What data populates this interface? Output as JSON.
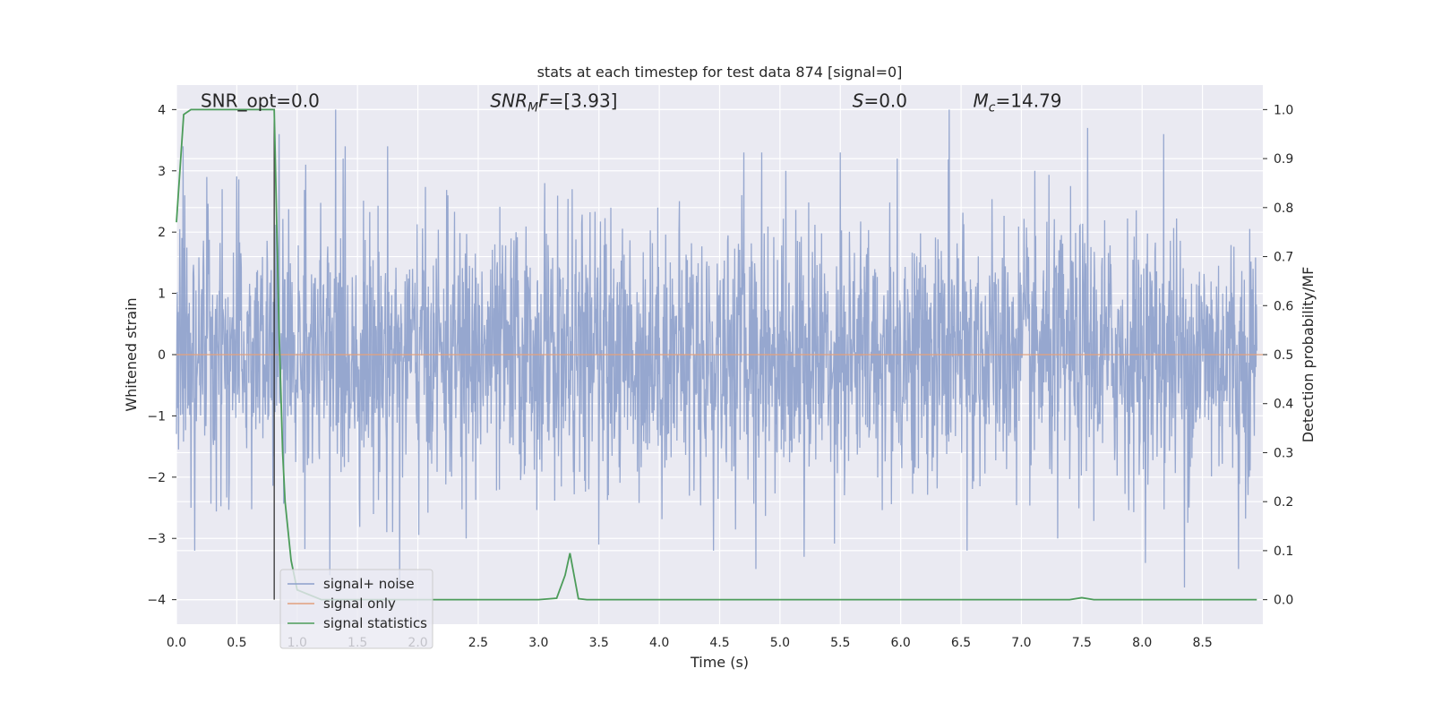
{
  "chart_data": {
    "type": "line",
    "title": "stats at each timestep for test data 874 [signal=0]",
    "xlabel": "Time (s)",
    "ylabel": "Whitened strain",
    "y2label": "Detection probability/MF",
    "xlim": [
      0.0,
      9.0
    ],
    "ylim": [
      -4.4,
      4.4
    ],
    "y2lim": [
      -0.05,
      1.05
    ],
    "grid": true,
    "xticks": [
      "0.0",
      "0.5",
      "1.0",
      "1.5",
      "2.0",
      "2.5",
      "3.0",
      "3.5",
      "4.0",
      "4.5",
      "5.0",
      "5.5",
      "6.0",
      "6.5",
      "7.0",
      "7.5",
      "8.0",
      "8.5"
    ],
    "yticks": [
      "4",
      "3",
      "2",
      "1",
      "0",
      "−1",
      "−2",
      "−3",
      "−4"
    ],
    "y2ticks": [
      "1.0",
      "0.9",
      "0.8",
      "0.7",
      "0.6",
      "0.5",
      "0.4",
      "0.3",
      "0.2",
      "0.1",
      "0.0"
    ],
    "annotations": [
      {
        "label": "SNR_opt=0.0",
        "x": 0.2,
        "y": 4.1
      },
      {
        "label": "SNR_MF=[3.93]",
        "x": 2.6,
        "y": 4.1
      },
      {
        "label": "S=0.0",
        "x": 5.6,
        "y": 4.1
      },
      {
        "label": "M_c=14.79",
        "x": 6.6,
        "y": 4.1
      }
    ],
    "vline_x": 0.81,
    "legend": {
      "placement": "lower-left",
      "entries": [
        {
          "label": "signal+ noise",
          "color": "#8da0cb"
        },
        {
          "label": "signal only",
          "color": "#e1a07c"
        },
        {
          "label": "signal statistics",
          "color": "#4c9c5a"
        }
      ]
    },
    "series": [
      {
        "name": "signal+ noise",
        "color": "#8da0cb",
        "note_sampling": "whitened noise sampled over 0-9 s",
        "peaks": [
          {
            "x": 0.07,
            "y": 2.6
          },
          {
            "x": 0.25,
            "y": 2.9
          },
          {
            "x": 0.38,
            "y": 2.7
          },
          {
            "x": 0.85,
            "y": 3.6
          },
          {
            "x": 1.07,
            "y": 3.1
          },
          {
            "x": 1.32,
            "y": 4.0
          },
          {
            "x": 1.38,
            "y": 3.2
          },
          {
            "x": 1.75,
            "y": 3.4
          },
          {
            "x": 2.25,
            "y": 2.6
          },
          {
            "x": 3.05,
            "y": 2.8
          },
          {
            "x": 3.6,
            "y": 2.4
          },
          {
            "x": 4.7,
            "y": 3.3
          },
          {
            "x": 4.85,
            "y": 3.3
          },
          {
            "x": 5.05,
            "y": 3.0
          },
          {
            "x": 5.5,
            "y": 3.3
          },
          {
            "x": 5.97,
            "y": 3.2
          },
          {
            "x": 6.4,
            "y": 4.0
          },
          {
            "x": 6.55,
            "y": 3.9
          },
          {
            "x": 7.55,
            "y": 3.7
          },
          {
            "x": 8.18,
            "y": 3.6
          }
        ],
        "troughs": [
          {
            "x": 0.12,
            "y": -2.5
          },
          {
            "x": 0.15,
            "y": -3.2
          },
          {
            "x": 1.27,
            "y": -3.6
          },
          {
            "x": 1.85,
            "y": -3.8
          },
          {
            "x": 2.4,
            "y": -3.0
          },
          {
            "x": 3.5,
            "y": -3.1
          },
          {
            "x": 4.45,
            "y": -3.2
          },
          {
            "x": 4.8,
            "y": -3.5
          },
          {
            "x": 5.2,
            "y": -3.3
          },
          {
            "x": 6.55,
            "y": -3.2
          },
          {
            "x": 7.3,
            "y": -3.0
          },
          {
            "x": 8.35,
            "y": -3.8
          },
          {
            "x": 8.8,
            "y": -3.5
          }
        ]
      },
      {
        "name": "signal only",
        "color": "#e1a07c",
        "x": [
          0.0,
          9.0
        ],
        "y": [
          0.0,
          0.0
        ]
      },
      {
        "name": "signal statistics",
        "color": "#4c9c5a",
        "axis": "right",
        "x": [
          0.0,
          0.06,
          0.12,
          0.2,
          0.3,
          0.4,
          0.5,
          0.6,
          0.7,
          0.81,
          0.85,
          0.88,
          0.9,
          0.95,
          1.0,
          1.2,
          1.5,
          2.0,
          2.3,
          2.6,
          3.0,
          3.15,
          3.22,
          3.26,
          3.33,
          3.4,
          4.0,
          5.0,
          6.0,
          7.0,
          7.4,
          7.5,
          7.6,
          8.0,
          8.5,
          8.95
        ],
        "y": [
          0.77,
          0.99,
          1.0,
          1.0,
          1.0,
          1.0,
          1.0,
          1.0,
          1.0,
          1.0,
          0.55,
          0.3,
          0.2,
          0.08,
          0.02,
          0.0,
          0.0,
          0.0,
          0.0,
          0.0,
          0.0,
          0.003,
          0.05,
          0.095,
          0.002,
          0.0,
          0.0,
          0.0,
          0.0,
          0.0,
          0.0,
          0.004,
          0.0,
          0.0,
          0.0,
          0.0
        ]
      }
    ]
  }
}
